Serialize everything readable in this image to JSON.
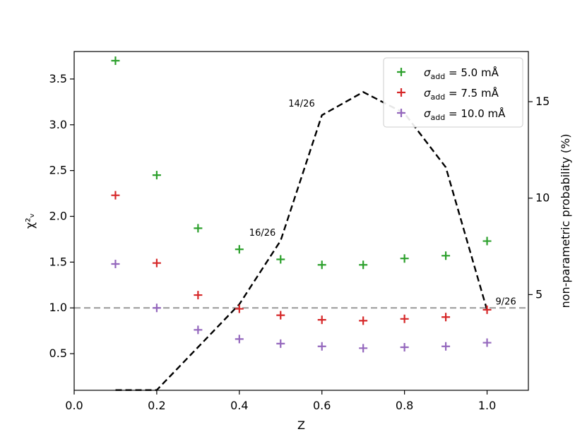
{
  "chart_data": {
    "type": "scatter",
    "x": [
      0.1,
      0.2,
      0.3,
      0.4,
      0.5,
      0.6,
      0.7,
      0.8,
      0.9,
      1.0
    ],
    "xlabel": "Z",
    "ylabel": "χ²ᵥ",
    "ylabel_right": "non-parametric probability (%)",
    "xlim": [
      0.0,
      1.1
    ],
    "ylim": [
      0.1,
      3.8
    ],
    "ylim_right": [
      0.04,
      17.6
    ],
    "xticks": [
      "0.0",
      "0.2",
      "0.4",
      "0.6",
      "0.8",
      "1.0"
    ],
    "yticks": [
      "0.5",
      "1.0",
      "1.5",
      "2.0",
      "2.5",
      "3.0",
      "3.5"
    ],
    "yticks_right": [
      "5",
      "10",
      "15"
    ],
    "series": [
      {
        "name": "σadd = 5.0 mÅ",
        "label_main": "σ",
        "label_sub": "add",
        "label_rest": " = 5.0 mÅ",
        "color": "#2ca02c",
        "marker": "plus",
        "values": [
          3.7,
          2.45,
          1.87,
          1.64,
          1.53,
          1.47,
          1.47,
          1.54,
          1.57,
          1.73
        ]
      },
      {
        "name": "σadd = 7.5 mÅ",
        "label_main": "σ",
        "label_sub": "add",
        "label_rest": " = 7.5 mÅ",
        "color": "#d62728",
        "marker": "plus",
        "values": [
          2.23,
          1.49,
          1.14,
          0.99,
          0.92,
          0.87,
          0.86,
          0.88,
          0.9,
          0.98
        ]
      },
      {
        "name": "σadd = 10.0 mÅ",
        "label_main": "σ",
        "label_sub": "add",
        "label_rest": " = 10.0 mÅ",
        "color": "#9467bd",
        "marker": "plus",
        "values": [
          1.48,
          1.0,
          0.76,
          0.66,
          0.61,
          0.58,
          0.56,
          0.57,
          0.58,
          0.62
        ]
      }
    ],
    "probability_line": {
      "axis": "right",
      "style": "dashed",
      "color": "#000000",
      "x": [
        0.1,
        0.2,
        0.4,
        0.5,
        0.6,
        0.7,
        0.8,
        0.9,
        1.0
      ],
      "values": [
        0.05,
        0.05,
        4.5,
        7.8,
        14.3,
        15.5,
        14.4,
        11.6,
        4.2
      ]
    },
    "reference_line": {
      "y": 1.0,
      "style": "dashed",
      "color": "#999999"
    },
    "annotations": [
      {
        "text": "16/26",
        "x": 0.5,
        "y_right": 7.8
      },
      {
        "text": "14/26",
        "x": 0.6,
        "y_right": 14.3
      },
      {
        "text": "9/26",
        "x": 1.0,
        "y_right": 4.2
      }
    ],
    "legend": {
      "placement": "top-right"
    },
    "grid": false
  }
}
